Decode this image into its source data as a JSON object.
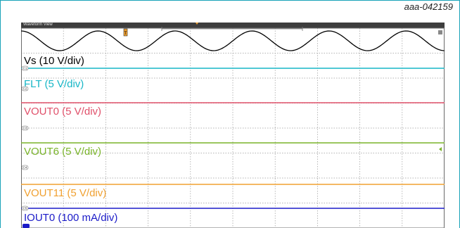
{
  "figure_id": "aaa-042159",
  "window": {
    "title": "Waveform View"
  },
  "channel_badges": [
    "C1",
    "C2",
    "C3",
    "C4",
    "C5"
  ],
  "colors": {
    "vs": "#000000",
    "flt": "#17b6c6",
    "vout0": "#e0506a",
    "vout6": "#7ab42a",
    "vout11": "#f0a030",
    "iout0": "#1b1bc8",
    "grid": "#9a9a9a",
    "titlebar": "#3d3d3d",
    "marker": "#f0a030"
  },
  "chart_data": {
    "type": "line",
    "title": "",
    "xlabel": "",
    "ylabel": "",
    "grid": true,
    "grid_divisions": {
      "x": 10,
      "y": 8
    },
    "series": [
      {
        "name": "Vs (10 V/div)",
        "color_key": "vs",
        "shape": "sine",
        "cycles": 5.5
      },
      {
        "name": "FLT (5 V/div)",
        "color_key": "flt",
        "shape": "flat"
      },
      {
        "name": "VOUT0 (5 V/div)",
        "color_key": "vout0",
        "shape": "flat"
      },
      {
        "name": "VOUT6 (5 V/div)",
        "color_key": "vout6",
        "shape": "flat"
      },
      {
        "name": "VOUT11 (5 V/div)",
        "color_key": "vout11",
        "shape": "flat"
      },
      {
        "name": "IOUT0 (100 mA/div)",
        "color_key": "iout0",
        "shape": "flat"
      }
    ]
  }
}
